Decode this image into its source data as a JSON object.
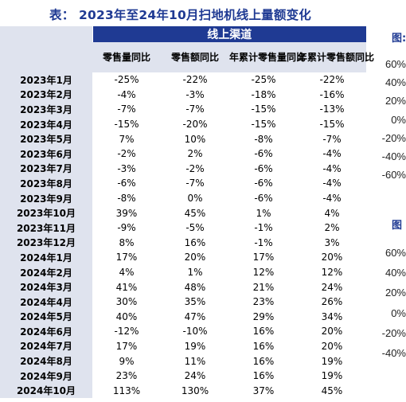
{
  "title": "表： 2023年至24年10月扫地机线上量额变化",
  "channel": "线上渠道",
  "columns": [
    "零售量同比",
    "零售额同比",
    "年累计零售量同比",
    "年累计零售额同比"
  ],
  "rows": [
    {
      "label": "2023年1月",
      "values": [
        "-25%",
        "-22%",
        "-25%",
        "-22%"
      ]
    },
    {
      "label": "2023年2月",
      "values": [
        "-4%",
        "-3%",
        "-18%",
        "-16%"
      ]
    },
    {
      "label": "2023年3月",
      "values": [
        "-7%",
        "-7%",
        "-15%",
        "-13%"
      ]
    },
    {
      "label": "2023年4月",
      "values": [
        "-15%",
        "-20%",
        "-15%",
        "-15%"
      ]
    },
    {
      "label": "2023年5月",
      "values": [
        "7%",
        "10%",
        "-8%",
        "-7%"
      ]
    },
    {
      "label": "2023年6月",
      "values": [
        "-2%",
        "2%",
        "-6%",
        "-4%"
      ]
    },
    {
      "label": "2023年7月",
      "values": [
        "-3%",
        "-2%",
        "-6%",
        "-4%"
      ]
    },
    {
      "label": "2023年8月",
      "values": [
        "-6%",
        "-7%",
        "-6%",
        "-4%"
      ]
    },
    {
      "label": "2023年9月",
      "values": [
        "-8%",
        "0%",
        "-6%",
        "-4%"
      ]
    },
    {
      "label": "2023年10月",
      "values": [
        "39%",
        "45%",
        "1%",
        "4%"
      ]
    },
    {
      "label": "2023年11月",
      "values": [
        "-9%",
        "-5%",
        "-1%",
        "2%"
      ]
    },
    {
      "label": "2023年12月",
      "values": [
        "8%",
        "16%",
        "-1%",
        "3%"
      ]
    },
    {
      "label": "2024年1月",
      "values": [
        "17%",
        "20%",
        "17%",
        "20%"
      ]
    },
    {
      "label": "2024年2月",
      "values": [
        "4%",
        "1%",
        "12%",
        "12%"
      ]
    },
    {
      "label": "2024年3月",
      "values": [
        "41%",
        "48%",
        "21%",
        "24%"
      ]
    },
    {
      "label": "2024年4月",
      "values": [
        "30%",
        "35%",
        "23%",
        "26%"
      ]
    },
    {
      "label": "2024年5月",
      "values": [
        "40%",
        "47%",
        "29%",
        "34%"
      ]
    },
    {
      "label": "2024年6月",
      "values": [
        "-12%",
        "-10%",
        "16%",
        "20%"
      ]
    },
    {
      "label": "2024年7月",
      "values": [
        "17%",
        "19%",
        "16%",
        "20%"
      ]
    },
    {
      "label": "2024年8月",
      "values": [
        "9%",
        "11%",
        "16%",
        "19%"
      ]
    },
    {
      "label": "2024年9月",
      "values": [
        "23%",
        "24%",
        "16%",
        "19%"
      ]
    },
    {
      "label": "2024年10月",
      "values": [
        "113%",
        "130%",
        "37%",
        "45%"
      ]
    }
  ],
  "right_panel": {
    "fig1_label": "图:",
    "fig1_ticks": [
      "60%",
      "40%",
      "20%",
      "0%",
      "-20%",
      "-40%",
      "-60%"
    ],
    "fig2_label": "图",
    "fig2_ticks": [
      "60%",
      "40%",
      "20%",
      "0%",
      "-20%",
      "-40%"
    ]
  },
  "colors": {
    "header_bg": "#1f3a93",
    "label_bg": "#dfe3ee",
    "title": "#1f3a93"
  }
}
